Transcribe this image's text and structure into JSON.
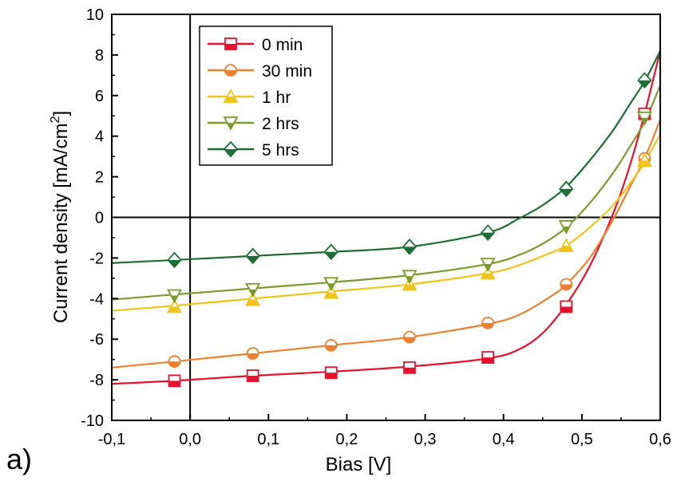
{
  "panel_label": "a)",
  "chart_data": {
    "type": "line",
    "xlabel": "Bias [V]",
    "ylabel": "Current density [mA/cm",
    "ylabel_superscript": "2",
    "ylabel_suffix": "]",
    "xlim": [
      -0.1,
      0.6
    ],
    "ylim": [
      -10,
      10
    ],
    "x_ticks": [
      -0.1,
      0.0,
      0.1,
      0.2,
      0.3,
      0.4,
      0.5,
      0.6
    ],
    "x_tick_labels": [
      "-0,1",
      "0,0",
      "0,1",
      "0,2",
      "0,3",
      "0,4",
      "0,5",
      "0,6"
    ],
    "y_ticks": [
      -10,
      -8,
      -6,
      -4,
      -2,
      0,
      2,
      4,
      6,
      8,
      10
    ],
    "y_tick_labels": [
      "-10",
      "-8",
      "-6",
      "-4",
      "-2",
      "0",
      "2",
      "4",
      "6",
      "8",
      "10"
    ],
    "grid": false,
    "reference_lines": {
      "x": 0,
      "y": 0
    },
    "legend_position": "top-left",
    "marker_x": [
      -0.02,
      0.08,
      0.18,
      0.28,
      0.38,
      0.48,
      0.58
    ],
    "series": [
      {
        "name": "0 min",
        "color": "#e8112d",
        "marker": "square",
        "markers": [
          -8.05,
          -7.8,
          -7.65,
          -7.4,
          -6.9,
          -4.4,
          5.1
        ],
        "curve_x": [
          -0.1,
          -0.02,
          0.08,
          0.18,
          0.28,
          0.38,
          0.42,
          0.45,
          0.48,
          0.51,
          0.54,
          0.56,
          0.58,
          0.6
        ],
        "curve_y": [
          -8.2,
          -8.05,
          -7.8,
          -7.6,
          -7.35,
          -6.95,
          -6.5,
          -5.7,
          -4.3,
          -2.4,
          0.2,
          2.4,
          5.1,
          8.2
        ]
      },
      {
        "name": "30 min",
        "color": "#ee7f2d",
        "marker": "circle",
        "markers": [
          -7.1,
          -6.7,
          -6.3,
          -5.9,
          -5.2,
          -3.3,
          2.9
        ],
        "curve_x": [
          -0.1,
          -0.02,
          0.08,
          0.18,
          0.28,
          0.38,
          0.42,
          0.46,
          0.48,
          0.51,
          0.54,
          0.56,
          0.58,
          0.6
        ],
        "curve_y": [
          -7.4,
          -7.1,
          -6.7,
          -6.3,
          -5.9,
          -5.25,
          -4.8,
          -3.9,
          -3.3,
          -2.0,
          -0.1,
          1.4,
          2.9,
          4.8
        ]
      },
      {
        "name": "1 hr",
        "color": "#f0c419",
        "marker": "triangle-up",
        "markers": [
          -4.4,
          -4.05,
          -3.7,
          -3.3,
          -2.75,
          -1.4,
          2.8
        ],
        "curve_x": [
          -0.1,
          -0.02,
          0.08,
          0.18,
          0.28,
          0.38,
          0.42,
          0.46,
          0.48,
          0.51,
          0.54,
          0.56,
          0.58,
          0.6
        ],
        "curve_y": [
          -4.6,
          -4.35,
          -4.0,
          -3.65,
          -3.3,
          -2.75,
          -2.35,
          -1.75,
          -1.4,
          -0.5,
          0.6,
          1.6,
          2.7,
          4.1
        ]
      },
      {
        "name": "2 hrs",
        "color": "#7c9a2a",
        "marker": "triangle-down",
        "markers": [
          -3.85,
          -3.55,
          -3.25,
          -2.9,
          -2.3,
          -0.45,
          4.9
        ],
        "curve_x": [
          -0.1,
          -0.02,
          0.08,
          0.18,
          0.28,
          0.38,
          0.42,
          0.45,
          0.48,
          0.51,
          0.54,
          0.56,
          0.58,
          0.6
        ],
        "curve_y": [
          -4.05,
          -3.8,
          -3.5,
          -3.2,
          -2.85,
          -2.3,
          -1.85,
          -1.3,
          -0.5,
          0.7,
          2.2,
          3.4,
          4.7,
          6.5
        ]
      },
      {
        "name": "5 hrs",
        "color": "#1c6e33",
        "marker": "diamond",
        "markers": [
          -2.1,
          -1.9,
          -1.7,
          -1.45,
          -0.75,
          1.4,
          6.75
        ],
        "curve_x": [
          -0.1,
          -0.02,
          0.08,
          0.18,
          0.28,
          0.38,
          0.42,
          0.45,
          0.48,
          0.51,
          0.54,
          0.56,
          0.58,
          0.6
        ],
        "curve_y": [
          -2.25,
          -2.1,
          -1.9,
          -1.7,
          -1.45,
          -0.75,
          -0.05,
          0.6,
          1.5,
          2.8,
          4.3,
          5.5,
          6.7,
          8.2
        ]
      }
    ]
  }
}
